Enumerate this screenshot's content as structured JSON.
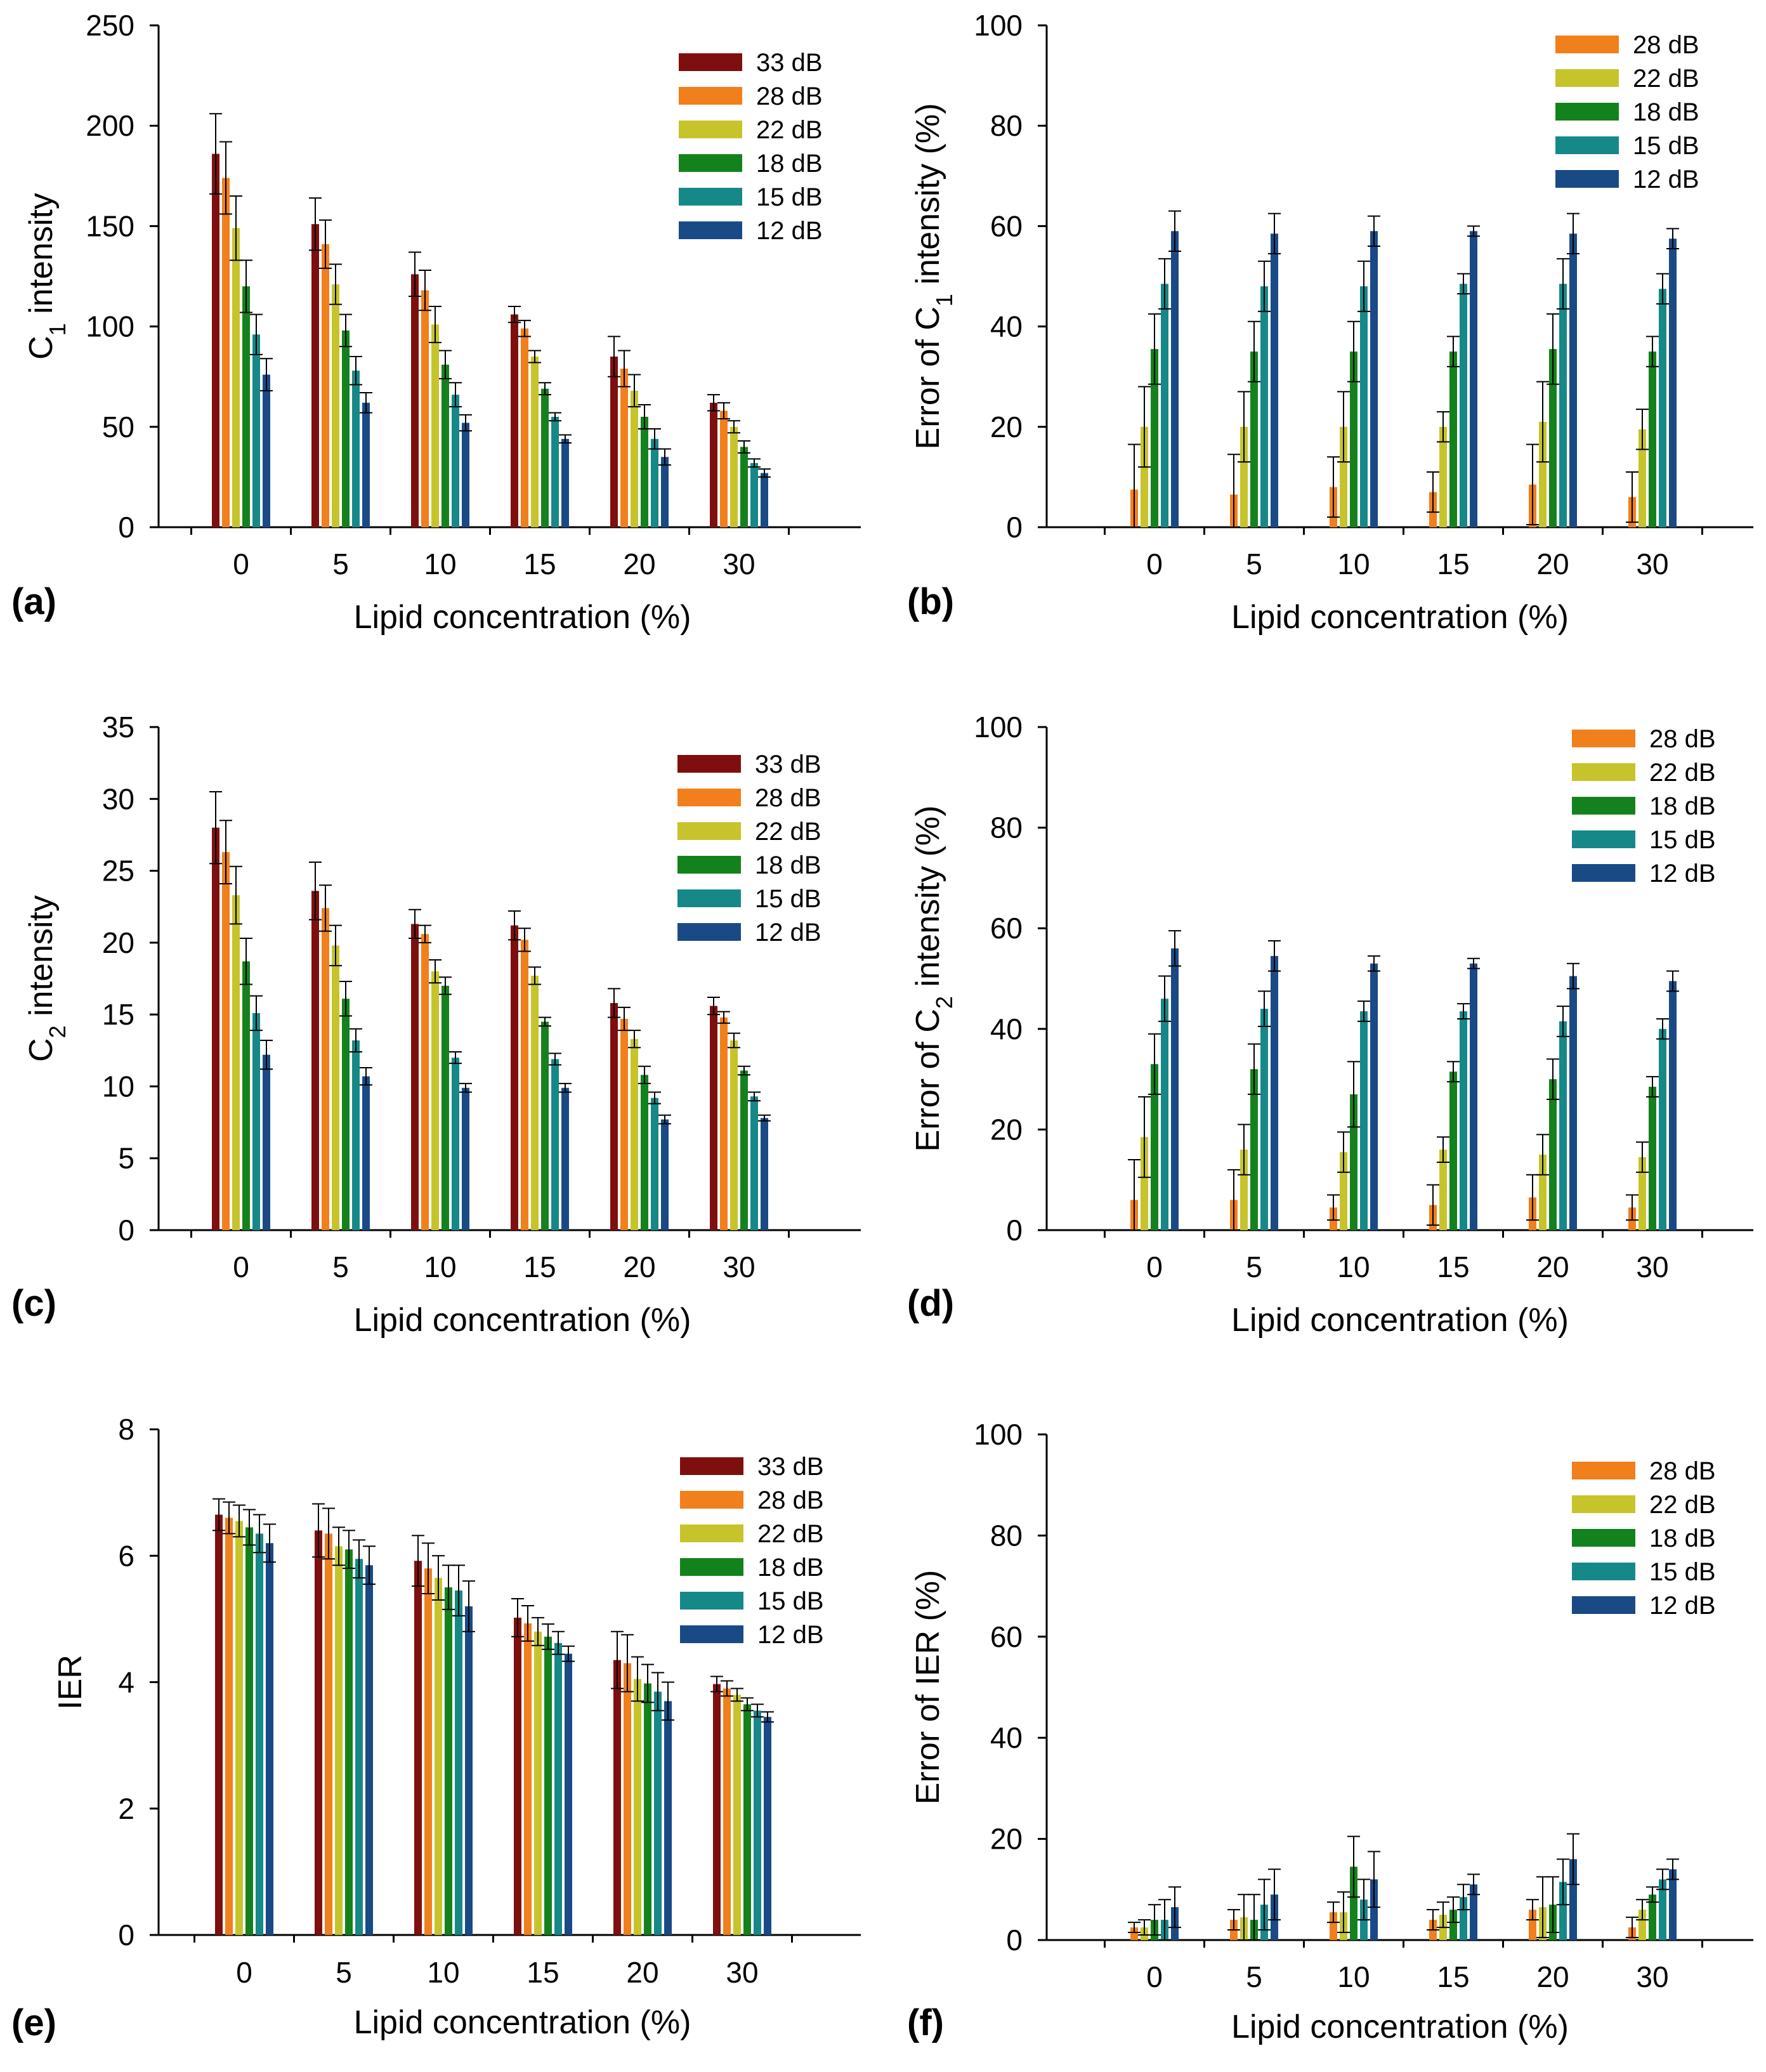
{
  "chart_data": [
    {
      "panel_label": "(a)",
      "type": "bar",
      "xlabel": "Lipid concentration (%)",
      "ylabel_pre": "C",
      "ylabel_sub": "1",
      "ylabel_post": " intensity",
      "ylim": [
        0,
        250
      ],
      "yticks": [
        "0",
        "50",
        "100",
        "150",
        "200",
        "250"
      ],
      "categories": [
        "0",
        "5",
        "10",
        "15",
        "20",
        "30"
      ],
      "legend_position": "top-right",
      "series": [
        {
          "name": "33 dB",
          "color": "#7f0f0f",
          "values": [
            186,
            151,
            126,
            106,
            85,
            62
          ],
          "errors": [
            20,
            13,
            11,
            4,
            10,
            4
          ]
        },
        {
          "name": "28 dB",
          "color": "#f07f1c",
          "values": [
            174,
            141,
            118,
            99,
            79,
            58
          ],
          "errors": [
            18,
            12,
            10,
            4,
            9,
            4
          ]
        },
        {
          "name": "22 dB",
          "color": "#c6c42a",
          "values": [
            149,
            121,
            101,
            85,
            68,
            50
          ],
          "errors": [
            16,
            10,
            9,
            3,
            8,
            3
          ]
        },
        {
          "name": "18 dB",
          "color": "#14821c",
          "values": [
            120,
            98,
            81,
            69,
            55,
            40
          ],
          "errors": [
            13,
            8,
            7,
            3,
            6,
            3
          ]
        },
        {
          "name": "15 dB",
          "color": "#168888",
          "values": [
            96,
            78,
            66,
            55,
            44,
            32
          ],
          "errors": [
            10,
            7,
            6,
            2,
            5,
            2
          ]
        },
        {
          "name": "12 dB",
          "color": "#1a4a85",
          "values": [
            76,
            62,
            52,
            44,
            35,
            27
          ],
          "errors": [
            8,
            5,
            4,
            2,
            4,
            2
          ]
        }
      ]
    },
    {
      "panel_label": "(b)",
      "type": "bar",
      "xlabel": "Lipid concentration (%)",
      "ylabel_pre": "Error of C",
      "ylabel_sub": "1",
      "ylabel_post": " intensity (%)",
      "ylim": [
        0,
        100
      ],
      "yticks": [
        "0",
        "20",
        "40",
        "60",
        "80",
        "100"
      ],
      "categories": [
        "0",
        "5",
        "10",
        "15",
        "20",
        "30"
      ],
      "legend_position": "top-right",
      "series": [
        {
          "name": "28 dB",
          "color": "#f07f1c",
          "values": [
            7.5,
            6.5,
            8,
            7,
            8.5,
            6
          ],
          "errors": [
            9,
            8,
            6,
            4,
            8,
            5
          ]
        },
        {
          "name": "22 dB",
          "color": "#c6c42a",
          "values": [
            20,
            20,
            20,
            20,
            21,
            19.5
          ],
          "errors": [
            8,
            7,
            7,
            3,
            8,
            4
          ]
        },
        {
          "name": "18 dB",
          "color": "#14821c",
          "values": [
            35.5,
            35,
            35,
            35,
            35.5,
            35
          ],
          "errors": [
            7,
            6,
            6,
            3,
            7,
            3
          ]
        },
        {
          "name": "15 dB",
          "color": "#168888",
          "values": [
            48.5,
            48,
            48,
            48.5,
            48.5,
            47.5
          ],
          "errors": [
            5,
            5,
            5,
            2,
            5,
            3
          ]
        },
        {
          "name": "12 dB",
          "color": "#1a4a85",
          "values": [
            59,
            58.5,
            59,
            59,
            58.5,
            57.5
          ],
          "errors": [
            4,
            4,
            3,
            1,
            4,
            2
          ]
        }
      ]
    },
    {
      "panel_label": "(c)",
      "type": "bar",
      "xlabel": "Lipid concentration (%)",
      "ylabel_pre": "C",
      "ylabel_sub": "2",
      "ylabel_post": " intensity",
      "ylim": [
        0,
        35
      ],
      "yticks": [
        "0",
        "5",
        "10",
        "15",
        "20",
        "25",
        "30",
        "35"
      ],
      "categories": [
        "0",
        "5",
        "10",
        "15",
        "20",
        "30"
      ],
      "legend_position": "top-right",
      "series": [
        {
          "name": "33 dB",
          "color": "#7f0f0f",
          "values": [
            28,
            23.6,
            21.3,
            21.2,
            15.8,
            15.6
          ],
          "errors": [
            2.5,
            2,
            1,
            1,
            1,
            0.6
          ]
        },
        {
          "name": "28 dB",
          "color": "#f07f1c",
          "values": [
            26.3,
            22.4,
            20.6,
            20.2,
            14.7,
            14.8
          ],
          "errors": [
            2.2,
            1.6,
            0.6,
            0.8,
            0.8,
            0.4
          ]
        },
        {
          "name": "22 dB",
          "color": "#c6c42a",
          "values": [
            23.3,
            19.8,
            18,
            17.7,
            13.3,
            13.2
          ],
          "errors": [
            2,
            1.4,
            0.8,
            0.6,
            0.6,
            0.5
          ]
        },
        {
          "name": "18 dB",
          "color": "#14821c",
          "values": [
            18.7,
            16.1,
            17,
            14.5,
            10.8,
            11.1
          ],
          "errors": [
            1.6,
            1.2,
            0.6,
            0.3,
            0.6,
            0.3
          ]
        },
        {
          "name": "15 dB",
          "color": "#168888",
          "values": [
            15.1,
            13.2,
            12,
            11.9,
            9.2,
            9.3
          ],
          "errors": [
            1.2,
            0.8,
            0.4,
            0.4,
            0.4,
            0.3
          ]
        },
        {
          "name": "12 dB",
          "color": "#1a4a85",
          "values": [
            12.2,
            10.7,
            9.9,
            9.9,
            7.7,
            7.8
          ],
          "errors": [
            1,
            0.6,
            0.3,
            0.3,
            0.3,
            0.2
          ]
        }
      ]
    },
    {
      "panel_label": "(d)",
      "type": "bar",
      "xlabel": "Lipid concentration (%)",
      "ylabel_pre": "Error of C",
      "ylabel_sub": "2",
      "ylabel_post": " intensity (%)",
      "ylim": [
        0,
        100
      ],
      "yticks": [
        "0",
        "20",
        "40",
        "60",
        "80",
        "100"
      ],
      "categories": [
        "0",
        "5",
        "10",
        "15",
        "20",
        "30"
      ],
      "legend_position": "top-right",
      "series": [
        {
          "name": "28 dB",
          "color": "#f07f1c",
          "values": [
            6,
            6,
            4.5,
            5,
            6.5,
            4.5
          ],
          "errors": [
            8,
            6,
            2.5,
            4,
            4.5,
            2.5
          ]
        },
        {
          "name": "22 dB",
          "color": "#c6c42a",
          "values": [
            18.5,
            16,
            15.5,
            16,
            15,
            14.5
          ],
          "errors": [
            8,
            5,
            4,
            2.5,
            4,
            3
          ]
        },
        {
          "name": "18 dB",
          "color": "#14821c",
          "values": [
            33,
            32,
            27,
            31.5,
            30,
            28.5
          ],
          "errors": [
            6,
            5,
            6.5,
            2,
            4,
            2
          ]
        },
        {
          "name": "15 dB",
          "color": "#168888",
          "values": [
            46,
            44,
            43.5,
            43.5,
            41.5,
            40
          ],
          "errors": [
            4.5,
            3.5,
            2,
            1.5,
            3,
            2
          ]
        },
        {
          "name": "12 dB",
          "color": "#1a4a85",
          "values": [
            56,
            54.5,
            53,
            53,
            50.5,
            49.5
          ],
          "errors": [
            3.5,
            3,
            1.5,
            1,
            2.5,
            2
          ]
        }
      ]
    },
    {
      "panel_label": "(e)",
      "type": "bar",
      "xlabel": "Lipid concentration (%)",
      "ylabel_pre": "IER",
      "ylabel_sub": "",
      "ylabel_post": "",
      "ylim": [
        0,
        8
      ],
      "yticks": [
        "0",
        "2",
        "4",
        "6",
        "8"
      ],
      "categories": [
        "0",
        "5",
        "10",
        "15",
        "20",
        "30"
      ],
      "legend_position": "top-right",
      "series": [
        {
          "name": "33 dB",
          "color": "#7f0f0f",
          "values": [
            6.65,
            6.4,
            5.92,
            5.02,
            4.35,
            3.97
          ],
          "errors": [
            0.25,
            0.42,
            0.4,
            0.3,
            0.45,
            0.12
          ]
        },
        {
          "name": "28 dB",
          "color": "#f07f1c",
          "values": [
            6.6,
            6.35,
            5.8,
            4.93,
            4.3,
            3.9
          ],
          "errors": [
            0.25,
            0.4,
            0.4,
            0.28,
            0.45,
            0.12
          ]
        },
        {
          "name": "22 dB",
          "color": "#c6c42a",
          "values": [
            6.55,
            6.15,
            5.65,
            4.8,
            4.05,
            3.8
          ],
          "errors": [
            0.25,
            0.3,
            0.35,
            0.22,
            0.35,
            0.1
          ]
        },
        {
          "name": "18 dB",
          "color": "#14821c",
          "values": [
            6.45,
            6.1,
            5.5,
            4.72,
            3.98,
            3.65
          ],
          "errors": [
            0.28,
            0.3,
            0.35,
            0.2,
            0.3,
            0.1
          ]
        },
        {
          "name": "15 dB",
          "color": "#168888",
          "values": [
            6.35,
            5.95,
            5.45,
            4.62,
            3.85,
            3.55
          ],
          "errors": [
            0.3,
            0.3,
            0.4,
            0.18,
            0.3,
            0.1
          ]
        },
        {
          "name": "12 dB",
          "color": "#1a4a85",
          "values": [
            6.2,
            5.85,
            5.2,
            4.45,
            3.7,
            3.45
          ],
          "errors": [
            0.3,
            0.3,
            0.4,
            0.12,
            0.3,
            0.08
          ]
        }
      ]
    },
    {
      "panel_label": "(f)",
      "type": "bar",
      "xlabel": "Lipid concentration (%)",
      "ylabel_pre": "Error of IER (%)",
      "ylabel_sub": "",
      "ylabel_post": "",
      "ylim": [
        0,
        100
      ],
      "yticks": [
        "0",
        "20",
        "40",
        "60",
        "80",
        "100"
      ],
      "categories": [
        "0",
        "5",
        "10",
        "15",
        "20",
        "30"
      ],
      "legend_position": "top-right",
      "series": [
        {
          "name": "28 dB",
          "color": "#f07f1c",
          "values": [
            2.5,
            4,
            5.5,
            4,
            6,
            2.5
          ],
          "errors": [
            1,
            2,
            2,
            2,
            2,
            2
          ]
        },
        {
          "name": "22 dB",
          "color": "#c6c42a",
          "values": [
            2.5,
            4.5,
            5.5,
            5,
            6.5,
            6
          ],
          "errors": [
            1.5,
            4.5,
            4,
            2.5,
            6,
            2
          ]
        },
        {
          "name": "18 dB",
          "color": "#14821c",
          "values": [
            4,
            4,
            14.5,
            6,
            7,
            9
          ],
          "errors": [
            3,
            5,
            6,
            2.5,
            5.5,
            1.5
          ]
        },
        {
          "name": "15 dB",
          "color": "#168888",
          "values": [
            4,
            7,
            8,
            8.5,
            11.5,
            12
          ],
          "errors": [
            4,
            5,
            4,
            2.5,
            4.5,
            2
          ]
        },
        {
          "name": "12 dB",
          "color": "#1a4a85",
          "values": [
            6.5,
            9,
            12,
            11,
            16,
            14
          ],
          "errors": [
            4,
            5,
            5.5,
            2,
            5,
            2
          ]
        }
      ]
    }
  ]
}
